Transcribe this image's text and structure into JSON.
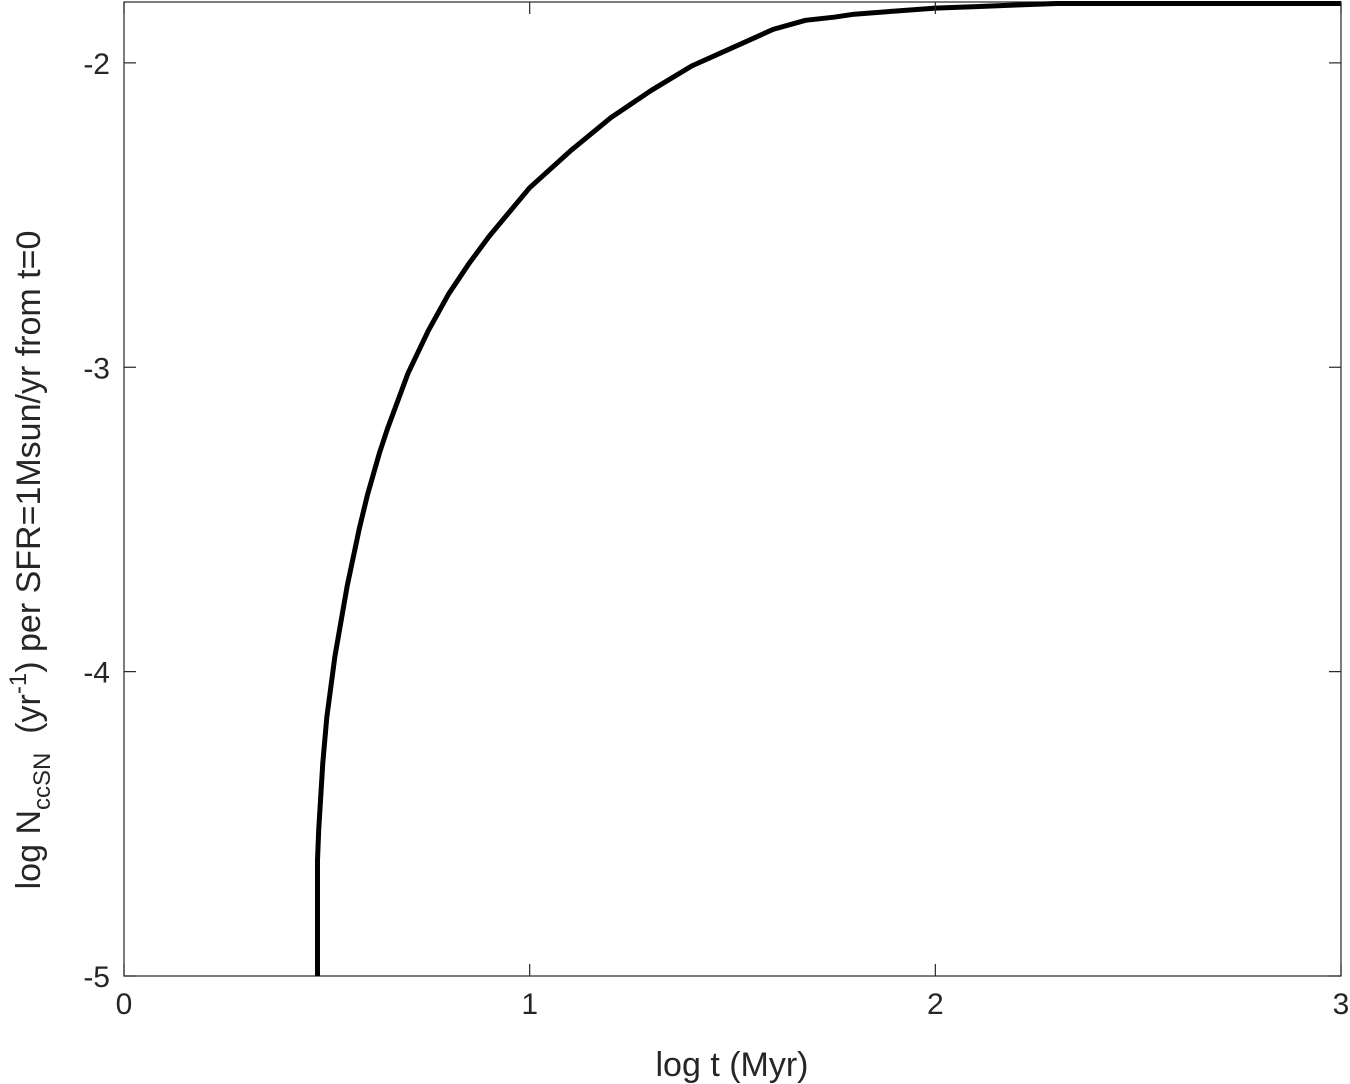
{
  "chart_data": {
    "type": "line",
    "xlabel": "log t (Myr)",
    "ylabel": {
      "prefix": "log N",
      "subscript": "ccSN",
      "middle": "  (yr",
      "superscript": "-1",
      "suffix": ") per SFR=1Msun/yr from t=0"
    },
    "xlim": [
      0,
      3
    ],
    "ylim": [
      -5,
      -1.8
    ],
    "xticks": [
      0,
      1,
      2,
      3
    ],
    "xtick_labels": [
      "0",
      "1",
      "2",
      "3"
    ],
    "yticks": [
      -5,
      -4,
      -3,
      -2
    ],
    "ytick_labels": [
      "-5",
      "-4",
      "-3",
      "-2"
    ],
    "grid": false,
    "line_color": "#000000",
    "series": [
      {
        "x": [
          0.477,
          0.477,
          0.48,
          0.49,
          0.5,
          0.52,
          0.55,
          0.58,
          0.6,
          0.63,
          0.65,
          0.7,
          0.75,
          0.8,
          0.85,
          0.9,
          0.95,
          1.0,
          1.1,
          1.2,
          1.3,
          1.4,
          1.5,
          1.6,
          1.68,
          1.75,
          1.8,
          1.9,
          2.0,
          2.1,
          2.2,
          2.3,
          2.5,
          2.75,
          3.0
        ],
        "y": [
          -5.0,
          -4.62,
          -4.52,
          -4.3,
          -4.15,
          -3.95,
          -3.72,
          -3.53,
          -3.42,
          -3.28,
          -3.2,
          -3.02,
          -2.88,
          -2.76,
          -2.66,
          -2.57,
          -2.49,
          -2.41,
          -2.29,
          -2.18,
          -2.09,
          -2.01,
          -1.95,
          -1.89,
          -1.86,
          -1.85,
          -1.84,
          -1.83,
          -1.82,
          -1.815,
          -1.81,
          -1.805,
          -1.805,
          -1.805,
          -1.805
        ]
      }
    ]
  }
}
